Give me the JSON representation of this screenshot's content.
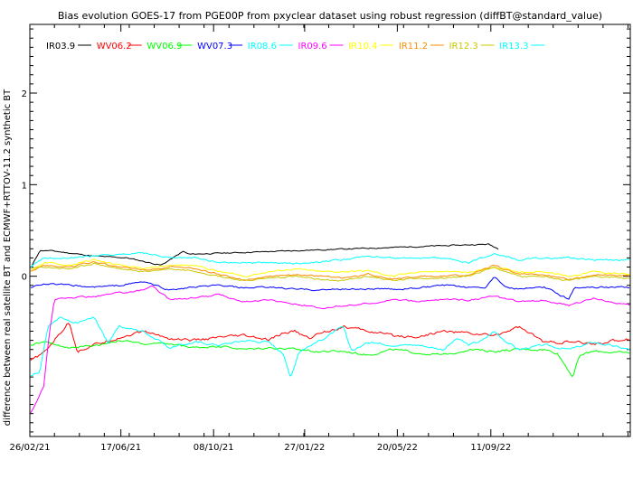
{
  "chart_data": {
    "type": "line",
    "title": "Bias evolution GOES-17 from PGE00P from pxyclear dataset using robust regression (diffBT@standard_value)",
    "xlabel": "",
    "ylabel": "difference between real satellite BT and ECMWF+RTTOV-11.2 synthetic BT",
    "xlim": [
      "2021-02-26",
      "2023-02-28"
    ],
    "ylim": [
      -1.75,
      2.75
    ],
    "x_ticks": [
      "26/02/21",
      "17/06/21",
      "08/10/21",
      "27/01/22",
      "20/05/22",
      "11/09/22"
    ],
    "y_ticks": [
      "0",
      "1",
      "2"
    ],
    "grid": false,
    "legend_position": "top-left",
    "series": [
      {
        "name": "IR03.9",
        "color": "#000000",
        "noise": 0.01,
        "points": [
          [
            "2021-03-01",
            0.12
          ],
          [
            "2021-03-10",
            0.28
          ],
          [
            "2021-03-22",
            0.28
          ],
          [
            "2021-05-15",
            0.22
          ],
          [
            "2021-06-25",
            0.2
          ],
          [
            "2021-08-05",
            0.12
          ],
          [
            "2021-09-01",
            0.27
          ],
          [
            "2021-09-08",
            0.24
          ],
          [
            "2022-09-08",
            0.35
          ],
          [
            "2022-09-20",
            0.3
          ]
        ]
      },
      {
        "name": "WV06.2",
        "color": "#ff0000",
        "noise": 0.025,
        "points": [
          [
            "2021-02-27",
            -0.92
          ],
          [
            "2021-03-15",
            -0.84
          ],
          [
            "2021-04-15",
            -0.5
          ],
          [
            "2021-04-25",
            -0.82
          ],
          [
            "2021-05-15",
            -0.75
          ],
          [
            "2021-06-15",
            -0.67
          ],
          [
            "2021-07-15",
            -0.6
          ],
          [
            "2021-08-15",
            -0.68
          ],
          [
            "2021-09-15",
            -0.7
          ],
          [
            "2021-10-15",
            -0.67
          ],
          [
            "2021-11-15",
            -0.65
          ],
          [
            "2021-12-15",
            -0.7
          ],
          [
            "2022-01-01",
            -0.62
          ],
          [
            "2022-01-15",
            -0.6
          ],
          [
            "2022-02-01",
            -0.68
          ],
          [
            "2022-02-15",
            -0.62
          ],
          [
            "2022-03-15",
            -0.55
          ],
          [
            "2022-04-15",
            -0.6
          ],
          [
            "2022-05-15",
            -0.65
          ],
          [
            "2022-06-15",
            -0.66
          ],
          [
            "2022-07-15",
            -0.6
          ],
          [
            "2022-08-15",
            -0.62
          ],
          [
            "2022-09-15",
            -0.65
          ],
          [
            "2022-10-15",
            -0.55
          ],
          [
            "2022-11-15",
            -0.72
          ],
          [
            "2022-12-15",
            -0.72
          ],
          [
            "2023-01-15",
            -0.74
          ],
          [
            "2023-02-27",
            -0.68
          ]
        ]
      },
      {
        "name": "WV06.9",
        "color": "#00ff00",
        "noise": 0.02,
        "points": [
          [
            "2021-02-27",
            -0.75
          ],
          [
            "2021-03-15",
            -0.72
          ],
          [
            "2021-04-15",
            -0.78
          ],
          [
            "2021-05-15",
            -0.76
          ],
          [
            "2021-06-15",
            -0.7
          ],
          [
            "2021-07-15",
            -0.74
          ],
          [
            "2021-08-15",
            -0.74
          ],
          [
            "2021-09-15",
            -0.78
          ],
          [
            "2021-10-15",
            -0.76
          ],
          [
            "2021-11-15",
            -0.8
          ],
          [
            "2021-12-15",
            -0.78
          ],
          [
            "2022-01-15",
            -0.8
          ],
          [
            "2022-02-15",
            -0.82
          ],
          [
            "2022-03-15",
            -0.82
          ],
          [
            "2022-04-15",
            -0.86
          ],
          [
            "2022-05-15",
            -0.8
          ],
          [
            "2022-06-15",
            -0.84
          ],
          [
            "2022-07-15",
            -0.86
          ],
          [
            "2022-08-15",
            -0.8
          ],
          [
            "2022-09-15",
            -0.82
          ],
          [
            "2022-10-15",
            -0.8
          ],
          [
            "2022-11-15",
            -0.8
          ],
          [
            "2022-12-01",
            -0.84
          ],
          [
            "2022-12-20",
            -1.1
          ],
          [
            "2022-12-28",
            -0.86
          ],
          [
            "2023-01-15",
            -0.82
          ],
          [
            "2023-02-27",
            -0.84
          ]
        ]
      },
      {
        "name": "WV07.3",
        "color": "#0000ff",
        "noise": 0.015,
        "points": [
          [
            "2021-02-27",
            -0.12
          ],
          [
            "2021-03-15",
            -0.08
          ],
          [
            "2021-04-15",
            -0.1
          ],
          [
            "2021-05-15",
            -0.12
          ],
          [
            "2021-06-15",
            -0.1
          ],
          [
            "2021-07-15",
            -0.06
          ],
          [
            "2021-08-15",
            -0.15
          ],
          [
            "2021-09-15",
            -0.12
          ],
          [
            "2021-10-15",
            -0.1
          ],
          [
            "2021-11-15",
            -0.13
          ],
          [
            "2021-12-15",
            -0.12
          ],
          [
            "2022-01-15",
            -0.14
          ],
          [
            "2022-02-15",
            -0.15
          ],
          [
            "2022-03-15",
            -0.14
          ],
          [
            "2022-04-15",
            -0.14
          ],
          [
            "2022-05-15",
            -0.14
          ],
          [
            "2022-06-15",
            -0.13
          ],
          [
            "2022-07-15",
            -0.1
          ],
          [
            "2022-08-15",
            -0.12
          ],
          [
            "2022-09-05",
            -0.12
          ],
          [
            "2022-09-15",
            0.0
          ],
          [
            "2022-10-01",
            -0.12
          ],
          [
            "2022-10-15",
            -0.14
          ],
          [
            "2022-11-15",
            -0.12
          ],
          [
            "2022-12-15",
            -0.25
          ],
          [
            "2022-12-22",
            -0.12
          ],
          [
            "2023-01-15",
            -0.12
          ],
          [
            "2023-02-27",
            -0.12
          ]
        ]
      },
      {
        "name": "IR08.6",
        "color": "#00ffff",
        "noise": 0.02,
        "points": [
          [
            "2021-02-27",
            -1.08
          ],
          [
            "2021-03-10",
            -1.05
          ],
          [
            "2021-03-20",
            -0.55
          ],
          [
            "2021-04-05",
            -0.45
          ],
          [
            "2021-04-20",
            -0.52
          ],
          [
            "2021-05-15",
            -0.45
          ],
          [
            "2021-06-01",
            -0.72
          ],
          [
            "2021-06-15",
            -0.55
          ],
          [
            "2021-07-15",
            -0.6
          ],
          [
            "2021-08-15",
            -0.78
          ],
          [
            "2021-09-15",
            -0.72
          ],
          [
            "2021-10-15",
            -0.75
          ],
          [
            "2021-11-15",
            -0.7
          ],
          [
            "2021-12-15",
            -0.72
          ],
          [
            "2022-01-01",
            -0.85
          ],
          [
            "2022-01-10",
            -1.12
          ],
          [
            "2022-01-20",
            -0.82
          ],
          [
            "2022-02-15",
            -0.7
          ],
          [
            "2022-03-15",
            -0.55
          ],
          [
            "2022-03-25",
            -0.82
          ],
          [
            "2022-04-15",
            -0.72
          ],
          [
            "2022-05-15",
            -0.75
          ],
          [
            "2022-06-15",
            -0.75
          ],
          [
            "2022-07-15",
            -0.8
          ],
          [
            "2022-08-01",
            -0.68
          ],
          [
            "2022-08-15",
            -0.75
          ],
          [
            "2022-09-01",
            -0.7
          ],
          [
            "2022-09-15",
            -0.6
          ],
          [
            "2022-10-01",
            -0.72
          ],
          [
            "2022-10-15",
            -0.8
          ],
          [
            "2022-11-15",
            -0.75
          ],
          [
            "2022-12-15",
            -0.8
          ],
          [
            "2023-01-15",
            -0.72
          ],
          [
            "2023-02-27",
            -0.8
          ]
        ]
      },
      {
        "name": "IR09.6",
        "color": "#ff00ff",
        "noise": 0.015,
        "points": [
          [
            "2021-02-27",
            -1.5
          ],
          [
            "2021-03-15",
            -1.2
          ],
          [
            "2021-03-22",
            -0.6
          ],
          [
            "2021-03-28",
            -0.25
          ],
          [
            "2021-05-15",
            -0.22
          ],
          [
            "2021-06-15",
            -0.18
          ],
          [
            "2021-07-15",
            -0.15
          ],
          [
            "2021-07-25",
            -0.1
          ],
          [
            "2021-08-15",
            -0.25
          ],
          [
            "2021-09-15",
            -0.24
          ],
          [
            "2021-10-15",
            -0.2
          ],
          [
            "2021-11-15",
            -0.28
          ],
          [
            "2021-12-15",
            -0.26
          ],
          [
            "2022-01-15",
            -0.3
          ],
          [
            "2022-02-15",
            -0.35
          ],
          [
            "2022-03-15",
            -0.32
          ],
          [
            "2022-04-15",
            -0.3
          ],
          [
            "2022-05-15",
            -0.25
          ],
          [
            "2022-06-15",
            -0.28
          ],
          [
            "2022-07-15",
            -0.25
          ],
          [
            "2022-08-15",
            -0.26
          ],
          [
            "2022-09-15",
            -0.22
          ],
          [
            "2022-10-15",
            -0.28
          ],
          [
            "2022-11-15",
            -0.26
          ],
          [
            "2022-12-15",
            -0.32
          ],
          [
            "2023-01-15",
            -0.24
          ],
          [
            "2023-02-27",
            -0.32
          ]
        ]
      },
      {
        "name": "IR10.4",
        "color": "#ffff00",
        "noise": 0.015,
        "points": [
          [
            "2021-02-27",
            0.05
          ],
          [
            "2021-03-15",
            0.15
          ],
          [
            "2021-04-15",
            0.12
          ],
          [
            "2021-05-15",
            0.18
          ],
          [
            "2021-06-15",
            0.12
          ],
          [
            "2021-07-15",
            0.08
          ],
          [
            "2021-08-15",
            0.12
          ],
          [
            "2021-09-15",
            0.12
          ],
          [
            "2021-10-15",
            0.05
          ],
          [
            "2021-11-15",
            0.0
          ],
          [
            "2021-12-15",
            0.05
          ],
          [
            "2022-01-15",
            0.08
          ],
          [
            "2022-02-15",
            0.05
          ],
          [
            "2022-03-15",
            0.05
          ],
          [
            "2022-04-15",
            0.06
          ],
          [
            "2022-05-15",
            0.0
          ],
          [
            "2022-06-15",
            0.05
          ],
          [
            "2022-07-15",
            0.05
          ],
          [
            "2022-08-15",
            0.04
          ],
          [
            "2022-09-15",
            0.1
          ],
          [
            "2022-10-15",
            0.05
          ],
          [
            "2022-11-15",
            0.05
          ],
          [
            "2022-12-15",
            0.0
          ],
          [
            "2023-01-15",
            0.05
          ],
          [
            "2023-02-27",
            0.02
          ]
        ]
      },
      {
        "name": "IR11.2",
        "color": "#ff8c00",
        "noise": 0.015,
        "points": [
          [
            "2021-02-27",
            0.05
          ],
          [
            "2021-03-15",
            0.12
          ],
          [
            "2021-04-15",
            0.1
          ],
          [
            "2021-05-15",
            0.16
          ],
          [
            "2021-06-15",
            0.1
          ],
          [
            "2021-07-15",
            0.07
          ],
          [
            "2021-08-15",
            0.1
          ],
          [
            "2021-09-15",
            0.08
          ],
          [
            "2021-10-15",
            0.02
          ],
          [
            "2021-11-15",
            -0.04
          ],
          [
            "2021-12-15",
            0.0
          ],
          [
            "2022-01-15",
            0.02
          ],
          [
            "2022-02-15",
            0.0
          ],
          [
            "2022-03-15",
            -0.02
          ],
          [
            "2022-04-15",
            0.02
          ],
          [
            "2022-05-15",
            -0.03
          ],
          [
            "2022-06-15",
            0.0
          ],
          [
            "2022-07-15",
            0.0
          ],
          [
            "2022-08-15",
            0.01
          ],
          [
            "2022-09-15",
            0.12
          ],
          [
            "2022-10-15",
            0.02
          ],
          [
            "2022-11-15",
            0.02
          ],
          [
            "2022-12-15",
            -0.04
          ],
          [
            "2023-01-15",
            0.02
          ],
          [
            "2023-02-27",
            0.0
          ]
        ]
      },
      {
        "name": "IR12.3",
        "color": "#c8c800",
        "noise": 0.015,
        "points": [
          [
            "2021-02-27",
            0.08
          ],
          [
            "2021-03-15",
            0.1
          ],
          [
            "2021-04-15",
            0.08
          ],
          [
            "2021-05-15",
            0.14
          ],
          [
            "2021-06-15",
            0.08
          ],
          [
            "2021-07-15",
            0.05
          ],
          [
            "2021-08-15",
            0.08
          ],
          [
            "2021-09-15",
            0.06
          ],
          [
            "2021-10-15",
            0.0
          ],
          [
            "2021-11-15",
            -0.05
          ],
          [
            "2021-12-15",
            -0.02
          ],
          [
            "2022-01-15",
            0.0
          ],
          [
            "2022-02-15",
            -0.04
          ],
          [
            "2022-03-15",
            -0.05
          ],
          [
            "2022-04-15",
            0.0
          ],
          [
            "2022-05-15",
            -0.05
          ],
          [
            "2022-06-15",
            -0.02
          ],
          [
            "2022-07-15",
            -0.02
          ],
          [
            "2022-08-15",
            0.0
          ],
          [
            "2022-09-15",
            0.1
          ],
          [
            "2022-10-15",
            0.0
          ],
          [
            "2022-11-15",
            0.0
          ],
          [
            "2022-12-15",
            -0.05
          ],
          [
            "2023-01-15",
            0.0
          ],
          [
            "2023-02-27",
            -0.02
          ]
        ]
      },
      {
        "name": "IR13.3",
        "color": "#00ffff",
        "noise": 0.015,
        "points": [
          [
            "2021-02-27",
            0.1
          ],
          [
            "2021-03-15",
            0.2
          ],
          [
            "2021-04-15",
            0.2
          ],
          [
            "2021-05-15",
            0.22
          ],
          [
            "2021-06-15",
            0.24
          ],
          [
            "2021-07-15",
            0.25
          ],
          [
            "2021-08-15",
            0.2
          ],
          [
            "2021-09-15",
            0.2
          ],
          [
            "2021-10-15",
            0.15
          ],
          [
            "2021-11-15",
            0.15
          ],
          [
            "2021-12-15",
            0.15
          ],
          [
            "2022-01-15",
            0.14
          ],
          [
            "2022-02-15",
            0.16
          ],
          [
            "2022-03-15",
            0.18
          ],
          [
            "2022-04-15",
            0.22
          ],
          [
            "2022-05-15",
            0.2
          ],
          [
            "2022-06-15",
            0.2
          ],
          [
            "2022-07-15",
            0.2
          ],
          [
            "2022-08-15",
            0.15
          ],
          [
            "2022-09-15",
            0.25
          ],
          [
            "2022-10-15",
            0.18
          ],
          [
            "2022-11-15",
            0.2
          ],
          [
            "2022-12-15",
            0.2
          ],
          [
            "2023-01-15",
            0.18
          ],
          [
            "2023-02-27",
            0.18
          ]
        ]
      }
    ]
  }
}
